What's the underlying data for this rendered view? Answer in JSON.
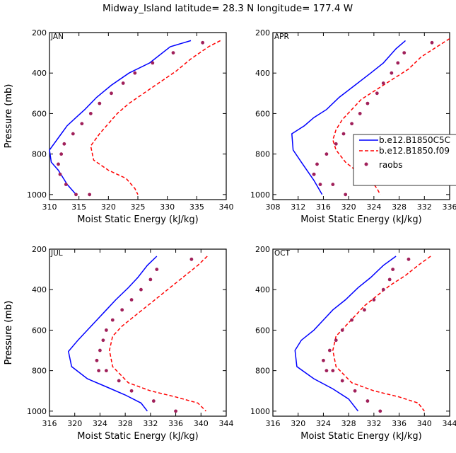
{
  "figure": {
    "title": "Midway_Island  latitude= 28.3 N longitude= 177.4 W"
  },
  "legend": {
    "entries": [
      "b.e12.B1850C5C",
      "b.e12.B1850.f09",
      "raobs"
    ]
  },
  "colors": {
    "model_c5": "#0000ff",
    "model_f09": "#ff0000",
    "raobs": "#a0205a"
  },
  "chart_data": [
    {
      "type": "line",
      "label": "JAN",
      "xlabel": "Moist Static Energy (kJ/kg)",
      "ylabel": "Pressure (mb)",
      "xlim": [
        310,
        340
      ],
      "ylim": [
        1025,
        200
      ],
      "xticks": [
        310,
        315,
        320,
        325,
        330,
        335,
        340
      ],
      "yticks": [
        200,
        400,
        600,
        800,
        1000
      ],
      "series": [
        {
          "name": "b.e12.B1850C5C",
          "style": "solid",
          "x": [
            334.0,
            330.5,
            327.0,
            323.5,
            320.5,
            318.0,
            316.0,
            314.5,
            313.0,
            312.0,
            310.0,
            310.3,
            311.5,
            313.0,
            314.5
          ],
          "y": [
            240,
            270,
            350,
            400,
            460,
            520,
            580,
            620,
            660,
            700,
            780,
            840,
            880,
            950,
            1000
          ]
        },
        {
          "name": "b.e12.B1850.f09",
          "style": "dashed",
          "x": [
            339.0,
            337.0,
            334.0,
            331.5,
            329.0,
            326.0,
            323.5,
            321.5,
            320.0,
            318.5,
            317.0,
            317.5,
            320.0,
            323.0,
            324.5,
            325.0
          ],
          "y": [
            240,
            270,
            330,
            390,
            440,
            500,
            550,
            600,
            650,
            700,
            760,
            830,
            880,
            920,
            970,
            1000
          ]
        },
        {
          "name": "raobs",
          "style": "points",
          "x": [
            336.0,
            331.0,
            327.5,
            324.5,
            322.5,
            320.5,
            318.5,
            317.0,
            315.5,
            314.0,
            312.5,
            312.0,
            311.5,
            311.8,
            312.8,
            314.5,
            316.8
          ],
          "y": [
            250,
            300,
            350,
            400,
            450,
            500,
            550,
            600,
            650,
            700,
            750,
            800,
            850,
            900,
            950,
            1000,
            1000
          ]
        }
      ]
    },
    {
      "type": "line",
      "label": "APR",
      "xlabel": "Moist Static Energy (kJ/kg)",
      "ylabel": "Pressure (mb)",
      "xlim": [
        308,
        336
      ],
      "ylim": [
        1025,
        200
      ],
      "xticks": [
        308,
        312,
        316,
        320,
        324,
        328,
        332,
        336
      ],
      "yticks": [
        200,
        400,
        600,
        800,
        1000
      ],
      "series": [
        {
          "name": "b.e12.B1850C5C",
          "style": "solid",
          "x": [
            329.0,
            327.5,
            325.5,
            323.5,
            321.0,
            318.5,
            316.5,
            314.5,
            313.0,
            311.0,
            311.2,
            312.5,
            314.5,
            315.8
          ],
          "y": [
            240,
            280,
            350,
            400,
            460,
            520,
            580,
            620,
            660,
            700,
            780,
            840,
            930,
            1000
          ]
        },
        {
          "name": "b.e12.B1850.f09",
          "style": "dashed",
          "x": [
            336.0,
            334.0,
            331.5,
            329.5,
            327.0,
            324.5,
            322.0,
            320.5,
            319.0,
            318.0,
            317.5,
            318.0,
            319.5,
            321.5,
            323.5,
            324.5,
            325.0
          ],
          "y": [
            230,
            270,
            320,
            380,
            430,
            480,
            530,
            580,
            630,
            680,
            730,
            780,
            840,
            890,
            930,
            970,
            1000
          ]
        },
        {
          "name": "raobs",
          "style": "points",
          "x": [
            333.2,
            328.8,
            327.8,
            326.8,
            325.5,
            324.5,
            323.0,
            321.8,
            320.5,
            319.2,
            318.0,
            316.5,
            315.0,
            314.5,
            314.5,
            315.5,
            317.5,
            319.5
          ],
          "y": [
            250,
            300,
            350,
            400,
            450,
            500,
            550,
            600,
            650,
            700,
            750,
            800,
            850,
            900,
            900,
            950,
            950,
            1000
          ]
        }
      ]
    },
    {
      "type": "line",
      "label": "JUL",
      "xlabel": "Moist Static Energy (kJ/kg)",
      "ylabel": "Pressure (mb)",
      "xlim": [
        316,
        344
      ],
      "ylim": [
        1025,
        200
      ],
      "xticks": [
        316,
        320,
        324,
        328,
        332,
        336,
        340,
        344
      ],
      "yticks": [
        200,
        400,
        600,
        800,
        1000
      ],
      "series": [
        {
          "name": "b.e12.B1850C5C",
          "style": "solid",
          "x": [
            333.0,
            331.5,
            330.0,
            328.5,
            326.5,
            325.0,
            323.5,
            322.0,
            320.5,
            319.0,
            319.5,
            322.0,
            325.0,
            328.0,
            330.5,
            331.5
          ],
          "y": [
            235,
            280,
            340,
            390,
            450,
            500,
            550,
            600,
            650,
            705,
            780,
            840,
            880,
            920,
            960,
            1000
          ]
        },
        {
          "name": "b.e12.B1850.f09",
          "style": "dashed",
          "x": [
            341.0,
            339.5,
            337.5,
            335.5,
            333.5,
            331.5,
            329.5,
            327.5,
            326.0,
            325.5,
            326.0,
            328.5,
            332.0,
            336.0,
            339.5,
            340.8
          ],
          "y": [
            235,
            280,
            330,
            380,
            430,
            480,
            530,
            580,
            630,
            700,
            780,
            860,
            900,
            930,
            960,
            1000
          ]
        },
        {
          "name": "raobs",
          "style": "points",
          "x": [
            338.5,
            333.0,
            332.0,
            330.5,
            329.0,
            327.5,
            326.0,
            325.0,
            324.5,
            324.0,
            323.5,
            323.8,
            325.0,
            327.0,
            329.0,
            332.5,
            336.0
          ],
          "y": [
            250,
            300,
            350,
            400,
            450,
            500,
            550,
            600,
            650,
            700,
            750,
            800,
            800,
            850,
            900,
            950,
            1000
          ]
        }
      ]
    },
    {
      "type": "line",
      "label": "OCT",
      "xlabel": "Moist Static Energy (kJ/kg)",
      "ylabel": "Pressure (mb)",
      "xlim": [
        316,
        344
      ],
      "ylim": [
        1025,
        200
      ],
      "xticks": [
        316,
        320,
        324,
        328,
        332,
        336,
        340,
        344
      ],
      "yticks": [
        200,
        400,
        600,
        800,
        1000
      ],
      "series": [
        {
          "name": "b.e12.B1850C5C",
          "style": "solid",
          "x": [
            335.5,
            333.5,
            331.5,
            329.5,
            327.5,
            325.5,
            324.0,
            322.5,
            320.5,
            319.5,
            319.8,
            322.5,
            325.5,
            328.0,
            329.5
          ],
          "y": [
            235,
            280,
            340,
            390,
            450,
            500,
            550,
            600,
            650,
            700,
            780,
            840,
            890,
            940,
            1000
          ]
        },
        {
          "name": "b.e12.B1850.f09",
          "style": "dashed",
          "x": [
            341.0,
            339.0,
            337.0,
            334.5,
            332.5,
            330.5,
            329.0,
            327.5,
            326.0,
            325.5,
            326.0,
            328.5,
            332.0,
            336.0,
            339.0,
            340.0
          ],
          "y": [
            235,
            280,
            330,
            380,
            430,
            480,
            530,
            580,
            630,
            700,
            780,
            860,
            900,
            930,
            960,
            1000
          ]
        },
        {
          "name": "raobs",
          "style": "points",
          "x": [
            337.5,
            335.0,
            334.5,
            333.5,
            332.0,
            330.5,
            328.5,
            327.0,
            326.0,
            325.0,
            324.0,
            324.5,
            325.5,
            327.0,
            329.0,
            331.0,
            333.0
          ],
          "y": [
            250,
            300,
            350,
            400,
            450,
            500,
            550,
            600,
            650,
            700,
            750,
            800,
            800,
            850,
            900,
            950,
            1000
          ]
        }
      ]
    }
  ]
}
